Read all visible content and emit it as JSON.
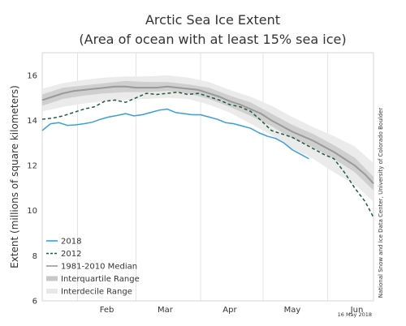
{
  "chart_data": {
    "type": "line",
    "title_line1": "Arctic Sea Ice Extent",
    "title_line2": "(Area of ocean with at least 15% sea ice)",
    "ylabel": "Extent (millions of square kilometers)",
    "x_unit": "day of year",
    "xlim": [
      15,
      174
    ],
    "ylim": [
      6,
      17
    ],
    "yticks": [
      6,
      8,
      10,
      12,
      14,
      16
    ],
    "month_ticks": [
      {
        "label": "Feb",
        "day": 46
      },
      {
        "label": "Mar",
        "day": 74
      },
      {
        "label": "Apr",
        "day": 105
      },
      {
        "label": "May",
        "day": 135
      },
      {
        "label": "Jun",
        "day": 166
      }
    ],
    "month_boundaries": [
      32,
      60,
      91,
      121,
      152
    ],
    "grid": "vertical at month boundaries",
    "date_stamp": "16 May 2018",
    "credit": "National Snow and Ice Data Center, University of Colorado Boulder",
    "legend_position": "bottom-left",
    "legend": [
      {
        "label": "2018",
        "style": "line",
        "color": "#3a9fd6"
      },
      {
        "label": "2012",
        "style": "dashed",
        "color": "#1e5a3a"
      },
      {
        "label": "1981-2010 Median",
        "style": "line",
        "color": "#999999"
      },
      {
        "label": "Interquartile Range",
        "style": "band",
        "color": "#c8c8c8"
      },
      {
        "label": "Interdecile Range",
        "style": "band",
        "color": "#e8e8e8"
      }
    ],
    "series": [
      {
        "name": "2018",
        "color": "#3a9fd6",
        "style": "solid",
        "x": [
          15,
          19,
          23,
          27,
          31,
          35,
          39,
          43,
          47,
          51,
          55,
          59,
          63,
          67,
          71,
          75,
          79,
          83,
          87,
          91,
          95,
          99,
          103,
          107,
          111,
          115,
          119,
          123,
          127,
          131,
          135,
          139,
          143
        ],
        "y": [
          13.55,
          13.85,
          13.9,
          13.78,
          13.8,
          13.85,
          13.92,
          14.05,
          14.15,
          14.22,
          14.3,
          14.2,
          14.25,
          14.35,
          14.45,
          14.5,
          14.35,
          14.3,
          14.25,
          14.25,
          14.15,
          14.05,
          13.9,
          13.85,
          13.75,
          13.65,
          13.45,
          13.3,
          13.2,
          13.0,
          12.7,
          12.5,
          12.3
        ]
      },
      {
        "name": "2012",
        "color": "#1e5a3a",
        "style": "dashed",
        "x": [
          15,
          20,
          25,
          30,
          35,
          40,
          45,
          50,
          55,
          60,
          65,
          70,
          75,
          80,
          85,
          90,
          95,
          100,
          105,
          110,
          115,
          120,
          125,
          130,
          135,
          140,
          145,
          150,
          155,
          160,
          165,
          170,
          174
        ],
        "y": [
          14.05,
          14.1,
          14.2,
          14.35,
          14.5,
          14.6,
          14.85,
          14.9,
          14.8,
          15.0,
          15.2,
          15.15,
          15.2,
          15.25,
          15.15,
          15.2,
          15.05,
          14.9,
          14.7,
          14.6,
          14.4,
          14.0,
          13.55,
          13.4,
          13.25,
          13.0,
          12.75,
          12.5,
          12.3,
          11.7,
          11.0,
          10.4,
          9.7
        ]
      },
      {
        "name": "1981-2010 Median",
        "color": "#999999",
        "style": "solid",
        "x": [
          15,
          20,
          25,
          30,
          35,
          40,
          45,
          50,
          55,
          60,
          65,
          70,
          75,
          80,
          85,
          90,
          95,
          100,
          105,
          110,
          115,
          120,
          125,
          130,
          135,
          140,
          145,
          150,
          155,
          160,
          165,
          170,
          174
        ],
        "y": [
          14.9,
          15.05,
          15.2,
          15.3,
          15.35,
          15.4,
          15.45,
          15.5,
          15.5,
          15.45,
          15.45,
          15.45,
          15.5,
          15.45,
          15.4,
          15.35,
          15.2,
          15.05,
          14.85,
          14.7,
          14.5,
          14.3,
          14.0,
          13.75,
          13.5,
          13.3,
          13.1,
          12.85,
          12.6,
          12.3,
          12.0,
          11.6,
          11.2
        ]
      }
    ],
    "bands": [
      {
        "name": "Interdecile Range",
        "color": "#ebebeb",
        "x": [
          15,
          25,
          35,
          45,
          55,
          65,
          75,
          85,
          95,
          105,
          115,
          125,
          135,
          145,
          155,
          165,
          174
        ],
        "lower": [
          14.4,
          14.6,
          14.75,
          14.85,
          14.9,
          14.95,
          15.0,
          14.95,
          14.7,
          14.35,
          13.85,
          13.35,
          12.75,
          12.3,
          11.7,
          11.15,
          10.4
        ],
        "upper": [
          15.4,
          15.65,
          15.8,
          15.9,
          15.95,
          15.95,
          16.0,
          15.9,
          15.7,
          15.35,
          15.05,
          14.65,
          14.15,
          13.7,
          13.3,
          12.85,
          12.1
        ]
      },
      {
        "name": "Interquartile Range",
        "color": "#cfcfcf",
        "x": [
          15,
          25,
          35,
          45,
          55,
          65,
          75,
          85,
          95,
          105,
          115,
          125,
          135,
          145,
          155,
          165,
          174
        ],
        "lower": [
          14.65,
          14.95,
          15.1,
          15.2,
          15.25,
          15.25,
          15.3,
          15.2,
          14.95,
          14.6,
          14.2,
          13.75,
          13.2,
          12.8,
          12.3,
          11.7,
          10.9
        ],
        "upper": [
          15.15,
          15.45,
          15.55,
          15.65,
          15.75,
          15.7,
          15.7,
          15.6,
          15.45,
          15.1,
          14.8,
          14.3,
          13.8,
          13.4,
          12.9,
          12.35,
          11.5
        ]
      }
    ]
  }
}
